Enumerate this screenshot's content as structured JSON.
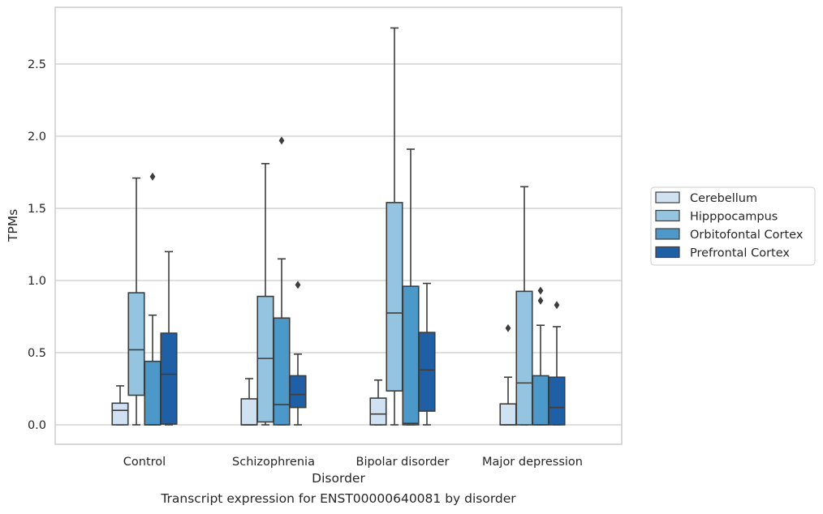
{
  "caption": "Transcript expression for ENST00000640081 by disorder",
  "chart_data": {
    "type": "boxplot",
    "title": "",
    "xlabel": "Disorder",
    "ylabel": "TPMs",
    "categories": [
      "Control",
      "Schizophrenia",
      "Bipolar disorder",
      "Major depression"
    ],
    "ylim": [
      -0.13,
      2.89
    ],
    "yticks": [
      "0.0",
      "0.5",
      "1.0",
      "1.5",
      "2.0",
      "2.5"
    ],
    "grid": true,
    "legend_position": "right",
    "series": [
      {
        "name": "Cerebellum",
        "color": "#d0e1f2",
        "boxes": [
          {
            "whisker_low": 0,
            "q1": 0,
            "median": 0.1,
            "q3": 0.15,
            "whisker_high": 0.27,
            "outliers": []
          },
          {
            "whisker_low": 0,
            "q1": 0,
            "median": 0.0,
            "q3": 0.18,
            "whisker_high": 0.32,
            "outliers": []
          },
          {
            "whisker_low": 0,
            "q1": 0,
            "median": 0.075,
            "q3": 0.185,
            "whisker_high": 0.31,
            "outliers": []
          },
          {
            "whisker_low": 0,
            "q1": 0,
            "median": 0.0,
            "q3": 0.145,
            "whisker_high": 0.33,
            "outliers": [
              0.67
            ]
          }
        ]
      },
      {
        "name": "Hipppocampus",
        "color": "#94c4df",
        "boxes": [
          {
            "whisker_low": 0,
            "q1": 0.205,
            "median": 0.52,
            "q3": 0.915,
            "whisker_high": 1.71,
            "outliers": []
          },
          {
            "whisker_low": 0,
            "q1": 0.02,
            "median": 0.46,
            "q3": 0.89,
            "whisker_high": 1.81,
            "outliers": []
          },
          {
            "whisker_low": 0,
            "q1": 0.235,
            "median": 0.775,
            "q3": 1.54,
            "whisker_high": 2.75,
            "outliers": []
          },
          {
            "whisker_low": 0,
            "q1": 0,
            "median": 0.29,
            "q3": 0.925,
            "whisker_high": 1.65,
            "outliers": []
          }
        ]
      },
      {
        "name": "Orbitofontal Cortex",
        "color": "#4b98c9",
        "boxes": [
          {
            "whisker_low": 0,
            "q1": 0,
            "median": 0.0,
            "q3": 0.44,
            "whisker_high": 0.76,
            "outliers": [
              1.72
            ]
          },
          {
            "whisker_low": 0,
            "q1": 0,
            "median": 0.14,
            "q3": 0.74,
            "whisker_high": 1.15,
            "outliers": [
              1.97
            ]
          },
          {
            "whisker_low": 0,
            "q1": 0,
            "median": 0.01,
            "q3": 0.96,
            "whisker_high": 1.91,
            "outliers": []
          },
          {
            "whisker_low": 0,
            "q1": 0,
            "median": 0.0,
            "q3": 0.34,
            "whisker_high": 0.69,
            "outliers": [
              0.86,
              0.93
            ]
          }
        ]
      },
      {
        "name": "Prefrontal Cortex",
        "color": "#1f5fa6",
        "boxes": [
          {
            "whisker_low": 0,
            "q1": 0.005,
            "median": 0.35,
            "q3": 0.635,
            "whisker_high": 1.2,
            "outliers": []
          },
          {
            "whisker_low": 0,
            "q1": 0.12,
            "median": 0.21,
            "q3": 0.34,
            "whisker_high": 0.49,
            "outliers": [
              0.97
            ]
          },
          {
            "whisker_low": 0,
            "q1": 0.095,
            "median": 0.38,
            "q3": 0.64,
            "whisker_high": 0.98,
            "outliers": []
          },
          {
            "whisker_low": 0,
            "q1": 0,
            "median": 0.12,
            "q3": 0.33,
            "whisker_high": 0.68,
            "outliers": [
              0.83
            ]
          }
        ]
      }
    ]
  }
}
